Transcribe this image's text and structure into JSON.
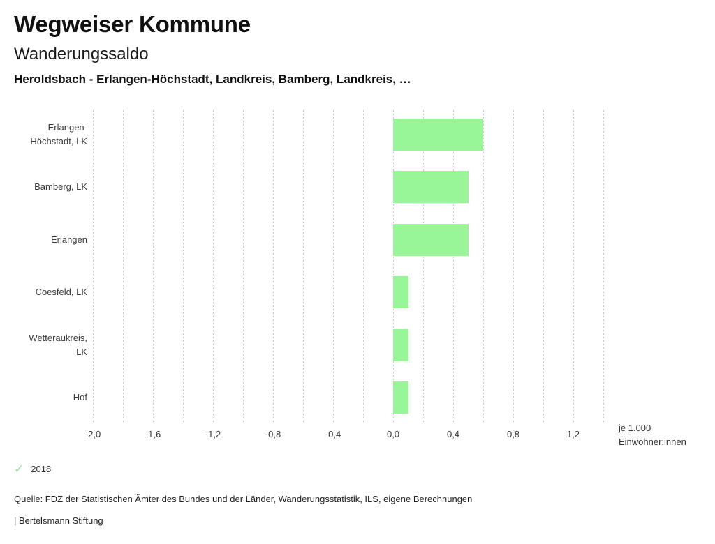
{
  "header": {
    "title": "Wegweiser Kommune",
    "subtitle": "Wanderungssaldo",
    "comparison": "Heroldsbach - Erlangen-Höchstadt, Landkreis, Bamberg, Landkreis, …"
  },
  "chart_data": {
    "type": "bar",
    "orientation": "horizontal",
    "title": "Wanderungssaldo",
    "categories": [
      "Erlangen-Höchstadt, LK",
      "Bamberg, LK",
      "Erlangen",
      "Coesfeld, LK",
      "Wetteraukreis, LK",
      "Hof"
    ],
    "series": [
      {
        "name": "2018",
        "values": [
          0.6,
          0.5,
          0.5,
          0.1,
          0.1,
          0.1
        ]
      }
    ],
    "xlabel": "je 1.000 Einwohner:innen",
    "ylabel": "",
    "xlim": [
      -2.0,
      1.4
    ],
    "gridline_step": 0.2,
    "grid": "dashed-vertical",
    "legend_position": "bottom-left",
    "bar_color": "#98f598",
    "gridline_color": "#c6c6c6",
    "ticks": [
      {
        "value": -2.0,
        "label": "-2,0"
      },
      {
        "value": -1.6,
        "label": "-1,6"
      },
      {
        "value": -1.2,
        "label": "-1,2"
      },
      {
        "value": -0.8,
        "label": "-0,8"
      },
      {
        "value": -0.4,
        "label": "-0,4"
      },
      {
        "value": 0.0,
        "label": "0,0"
      },
      {
        "value": 0.4,
        "label": "0,4"
      },
      {
        "value": 0.8,
        "label": "0,8"
      },
      {
        "value": 1.2,
        "label": "1,2"
      }
    ],
    "unit_label": [
      "je 1.000",
      "Einwohner:innen"
    ]
  },
  "legend": {
    "check_icon": "✓",
    "check_color": "#8fe29a",
    "year": "2018"
  },
  "footer": {
    "source": "Quelle: FDZ der Statistischen Ämter des Bundes und der Länder, Wanderungsstatistik, ILS, eigene Berechnungen",
    "attribution": "| Bertelsmann Stiftung"
  }
}
